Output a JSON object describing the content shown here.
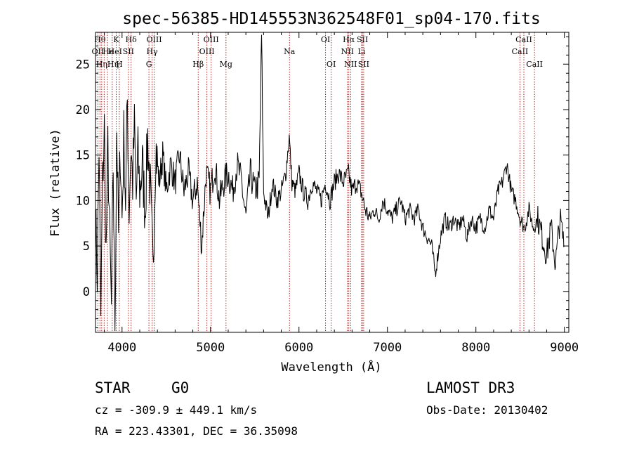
{
  "chart_data": {
    "type": "line",
    "title": "spec-56385-HD145553N362548F01_sp04-170.fits",
    "xlabel": "Wavelength (Å)",
    "ylabel": "Flux (relative)",
    "xlim": [
      3700,
      9050
    ],
    "ylim": [
      -4.5,
      28.5
    ],
    "xticks": [
      4000,
      5000,
      6000,
      7000,
      8000,
      9000
    ],
    "yticks": [
      0,
      5,
      10,
      15,
      20,
      25
    ],
    "grid": false,
    "legend": "none",
    "line_color": "#000000",
    "marker_color": "#b22222",
    "series": [
      {
        "name": "flux",
        "anchors": [
          [
            3700,
            8
          ],
          [
            3720,
            2
          ],
          [
            3740,
            16
          ],
          [
            3760,
            -3
          ],
          [
            3780,
            12
          ],
          [
            3800,
            18
          ],
          [
            3820,
            4
          ],
          [
            3840,
            16
          ],
          [
            3860,
            6
          ],
          [
            3880,
            -2
          ],
          [
            3900,
            14
          ],
          [
            3920,
            -4
          ],
          [
            3940,
            18
          ],
          [
            3960,
            6
          ],
          [
            3980,
            16
          ],
          [
            4000,
            8
          ],
          [
            4020,
            17
          ],
          [
            4040,
            10
          ],
          [
            4060,
            21
          ],
          [
            4080,
            9
          ],
          [
            4100,
            16
          ],
          [
            4120,
            12
          ],
          [
            4140,
            18
          ],
          [
            4160,
            10
          ],
          [
            4180,
            15
          ],
          [
            4200,
            11
          ],
          [
            4230,
            14
          ],
          [
            4260,
            9
          ],
          [
            4290,
            17
          ],
          [
            4320,
            11
          ],
          [
            4350,
            2
          ],
          [
            4380,
            16
          ],
          [
            4420,
            12
          ],
          [
            4460,
            15
          ],
          [
            4500,
            11
          ],
          [
            4550,
            14
          ],
          [
            4600,
            12
          ],
          [
            4650,
            15
          ],
          [
            4700,
            11
          ],
          [
            4750,
            13
          ],
          [
            4800,
            10
          ],
          [
            4850,
            12
          ],
          [
            4900,
            5
          ],
          [
            4950,
            13
          ],
          [
            5000,
            11
          ],
          [
            5050,
            14
          ],
          [
            5100,
            10
          ],
          [
            5150,
            12
          ],
          [
            5200,
            13
          ],
          [
            5250,
            11
          ],
          [
            5300,
            14
          ],
          [
            5350,
            12
          ],
          [
            5400,
            8
          ],
          [
            5450,
            13
          ],
          [
            5500,
            11
          ],
          [
            5550,
            12
          ],
          [
            5577,
            28
          ],
          [
            5600,
            11
          ],
          [
            5650,
            8
          ],
          [
            5700,
            12
          ],
          [
            5750,
            10
          ],
          [
            5800,
            11
          ],
          [
            5850,
            13
          ],
          [
            5890,
            17
          ],
          [
            5920,
            12
          ],
          [
            5960,
            11
          ],
          [
            6000,
            13
          ],
          [
            6050,
            11
          ],
          [
            6100,
            10
          ],
          [
            6150,
            12
          ],
          [
            6200,
            11
          ],
          [
            6250,
            10
          ],
          [
            6300,
            12
          ],
          [
            6350,
            10
          ],
          [
            6400,
            12
          ],
          [
            6450,
            13
          ],
          [
            6500,
            12
          ],
          [
            6560,
            13
          ],
          [
            6600,
            11
          ],
          [
            6650,
            12
          ],
          [
            6700,
            11
          ],
          [
            6750,
            9
          ],
          [
            6800,
            8
          ],
          [
            6850,
            9
          ],
          [
            6900,
            8
          ],
          [
            6950,
            10
          ],
          [
            7000,
            9
          ],
          [
            7050,
            8
          ],
          [
            7100,
            9
          ],
          [
            7150,
            10
          ],
          [
            7200,
            8
          ],
          [
            7250,
            9
          ],
          [
            7300,
            8
          ],
          [
            7350,
            9
          ],
          [
            7400,
            7
          ],
          [
            7450,
            6
          ],
          [
            7500,
            5
          ],
          [
            7540,
            2
          ],
          [
            7600,
            6
          ],
          [
            7650,
            8
          ],
          [
            7700,
            7
          ],
          [
            7750,
            8
          ],
          [
            7800,
            7
          ],
          [
            7850,
            8
          ],
          [
            7900,
            6
          ],
          [
            7950,
            8
          ],
          [
            8000,
            7
          ],
          [
            8050,
            8
          ],
          [
            8100,
            7
          ],
          [
            8150,
            9
          ],
          [
            8200,
            8
          ],
          [
            8250,
            11
          ],
          [
            8300,
            12
          ],
          [
            8350,
            14
          ],
          [
            8400,
            11
          ],
          [
            8450,
            10
          ],
          [
            8500,
            8
          ],
          [
            8550,
            7
          ],
          [
            8600,
            9
          ],
          [
            8650,
            7
          ],
          [
            8700,
            8
          ],
          [
            8750,
            6
          ],
          [
            8800,
            4
          ],
          [
            8850,
            7
          ],
          [
            8900,
            3
          ],
          [
            8950,
            8
          ],
          [
            9000,
            5
          ]
        ]
      }
    ],
    "line_markers": [
      {
        "wl": 3727,
        "label": "OII",
        "row": 1,
        "dx": 0
      },
      {
        "wl": 3750,
        "label": "Hθ",
        "row": 0,
        "dx": 0
      },
      {
        "wl": 3770,
        "label": "Hη",
        "row": 2,
        "dx": 0
      },
      {
        "wl": 3798,
        "label": "He",
        "row": 1,
        "dx": 6
      },
      {
        "wl": 3835,
        "label": "Hη",
        "row": 2,
        "dx": 8
      },
      {
        "wl": 3889,
        "label": "HeI",
        "row": 1,
        "dx": 4
      },
      {
        "wl": 3934,
        "label": "K",
        "row": 0,
        "dx": 0
      },
      {
        "wl": 3969,
        "label": "H",
        "row": 2,
        "dx": 0
      },
      {
        "wl": 4072,
        "label": "SII",
        "row": 1,
        "dx": 0
      },
      {
        "wl": 4102,
        "label": "Hδ",
        "row": 0,
        "dx": 0
      },
      {
        "wl": 4304,
        "label": "G",
        "row": 2,
        "dx": 0
      },
      {
        "wl": 4340,
        "label": "Hγ",
        "row": 1,
        "dx": 0
      },
      {
        "wl": 4363,
        "label": "OIII",
        "row": 0,
        "dx": 0
      },
      {
        "wl": 4861,
        "label": "Hβ",
        "row": 2,
        "dx": 0
      },
      {
        "wl": 4959,
        "label": "OIII",
        "row": 1,
        "dx": 0
      },
      {
        "wl": 5007,
        "label": "OIII",
        "row": 0,
        "dx": 0
      },
      {
        "wl": 5175,
        "label": "Mg",
        "row": 2,
        "dx": 0
      },
      {
        "wl": 5893,
        "label": "Na",
        "row": 1,
        "dx": 0
      },
      {
        "wl": 6300,
        "label": "OI",
        "row": 0,
        "dx": 0
      },
      {
        "wl": 6364,
        "label": "OI",
        "row": 2,
        "dx": 0
      },
      {
        "wl": 6548,
        "label": "NII",
        "row": 1,
        "dx": 0
      },
      {
        "wl": 6563,
        "label": "Hα",
        "row": 0,
        "dx": 0
      },
      {
        "wl": 6584,
        "label": "NII",
        "row": 2,
        "dx": 0
      },
      {
        "wl": 6708,
        "label": "Li",
        "row": 1,
        "dx": 0
      },
      {
        "wl": 6717,
        "label": "SII",
        "row": 0,
        "dx": 0
      },
      {
        "wl": 6731,
        "label": "SII",
        "row": 2,
        "dx": 0
      },
      {
        "wl": 8498,
        "label": "CaII",
        "row": 1,
        "dx": 0
      },
      {
        "wl": 8542,
        "label": "CaII",
        "row": 0,
        "dx": 0
      },
      {
        "wl": 8662,
        "label": "CaII",
        "row": 2,
        "dx": 0
      }
    ]
  },
  "info": {
    "object_class": "STAR",
    "subclass": "G0",
    "survey": "LAMOST DR3",
    "cz": "cz = -309.9 ± 449.1 km/s",
    "obs_date": "Obs-Date: 20130402",
    "radec": "RA = 223.43301, DEC =  36.35098"
  }
}
